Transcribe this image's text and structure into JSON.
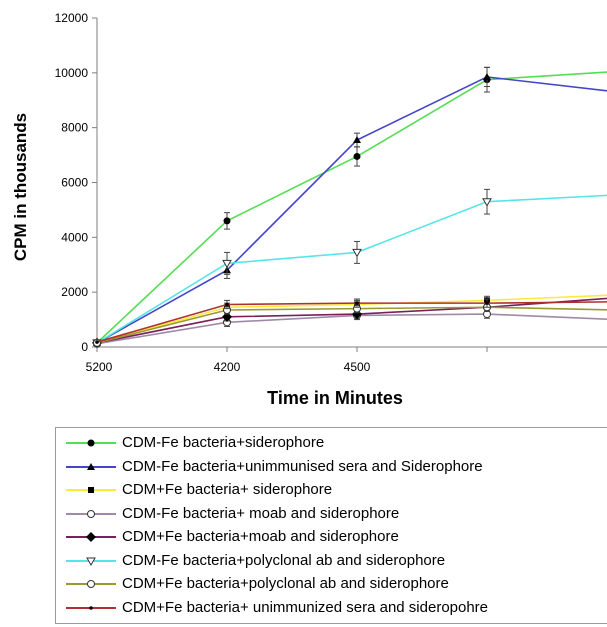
{
  "chart_data": {
    "type": "line",
    "title": "",
    "xlabel": "Time in Minutes",
    "ylabel": "CPM in thousands",
    "categories": [
      "5200",
      "4200",
      "4500",
      "",
      ""
    ],
    "ylim": [
      0,
      12000
    ],
    "yticks": [
      0,
      2000,
      4000,
      6000,
      8000,
      10000,
      12000
    ],
    "grid": false,
    "legend_position": "bottom",
    "series": [
      {
        "name": "CDM-Fe bacteria+siderophore",
        "color": "#55dd55",
        "marker": "filled-circle",
        "values": [
          150,
          4600,
          6950,
          9750,
          10050
        ],
        "errors": [
          60,
          300,
          350,
          450,
          300
        ]
      },
      {
        "name": "CDM-Fe bacteria+unimmunised sera and Siderophore",
        "color": "#4545c8",
        "marker": "filled-triangle",
        "values": [
          150,
          2800,
          7550,
          9850,
          9300
        ],
        "errors": [
          60,
          300,
          250,
          350,
          300
        ]
      },
      {
        "name": "CDM+Fe bacteria+ siderophore",
        "color": "#ffea3a",
        "marker": "filled-square",
        "values": [
          150,
          1450,
          1550,
          1700,
          1900
        ],
        "errors": [
          60,
          150,
          150,
          150,
          150
        ]
      },
      {
        "name": "CDM-Fe bacteria+ moab and siderophore",
        "color": "#a08aa8",
        "marker": "open-circle",
        "values": [
          120,
          900,
          1150,
          1200,
          1000
        ],
        "errors": [
          60,
          150,
          150,
          150,
          150
        ]
      },
      {
        "name": "CDM+Fe bacteria+moab and siderophore",
        "color": "#7a1f5a",
        "marker": "filled-diamond",
        "values": [
          150,
          1100,
          1200,
          1450,
          1800
        ],
        "errors": [
          60,
          150,
          150,
          150,
          150
        ]
      },
      {
        "name": "CDM-Fe bacteria+polyclonal ab and siderophore",
        "color": "#55e5e8",
        "marker": "open-triangle-down",
        "values": [
          150,
          3050,
          3450,
          5300,
          5550
        ],
        "errors": [
          60,
          400,
          400,
          450,
          400
        ]
      },
      {
        "name": "CDM+Fe bacteria+polyclonal ab and siderophore",
        "color": "#9a9a30",
        "marker": "open-circle",
        "values": [
          150,
          1350,
          1400,
          1450,
          1350
        ],
        "errors": [
          60,
          150,
          150,
          150,
          150
        ]
      },
      {
        "name": "CDM+Fe bacteria+ unimmunized sera and sideropohre",
        "color": "#b03030",
        "marker": "small-dot",
        "values": [
          180,
          1550,
          1600,
          1600,
          1650
        ],
        "errors": [
          60,
          150,
          150,
          150,
          150
        ]
      }
    ]
  }
}
